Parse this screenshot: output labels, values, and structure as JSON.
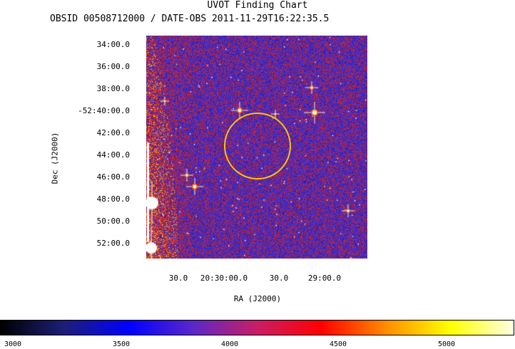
{
  "title": "UVOT Finding Chart",
  "subtitle": "OBSID 00508712000 / DATE-OBS 2011-11-29T16:22:35.5",
  "axes": {
    "xlabel": "RA (J2000)",
    "ylabel": "Dec (J2000)",
    "ra_ticks": [
      "30.0",
      "20:30:00.0",
      "30.0",
      "29:00.0"
    ],
    "dec_ticks": [
      "34:00.0",
      "36:00.0",
      "38:00.0",
      "-52:40:00.0",
      "42:00.0",
      "44:00.0",
      "46:00.0",
      "48:00.0",
      "50:00.0",
      "52:00.0"
    ]
  },
  "colorbar": {
    "ticks": [
      "3000",
      "3500",
      "4000",
      "4500",
      "5000"
    ],
    "colormap": [
      "#000000",
      "#1e1e78",
      "#0000ff",
      "#5a28c8",
      "#c81e64",
      "#ff0000",
      "#ff8c00",
      "#ffff00",
      "#ffffe6"
    ]
  },
  "image": {
    "background_colors": [
      "#2b2bd6",
      "#5a2bb8",
      "#c8282e",
      "#1f1fb0"
    ],
    "circle_color": "#ffc400"
  }
}
